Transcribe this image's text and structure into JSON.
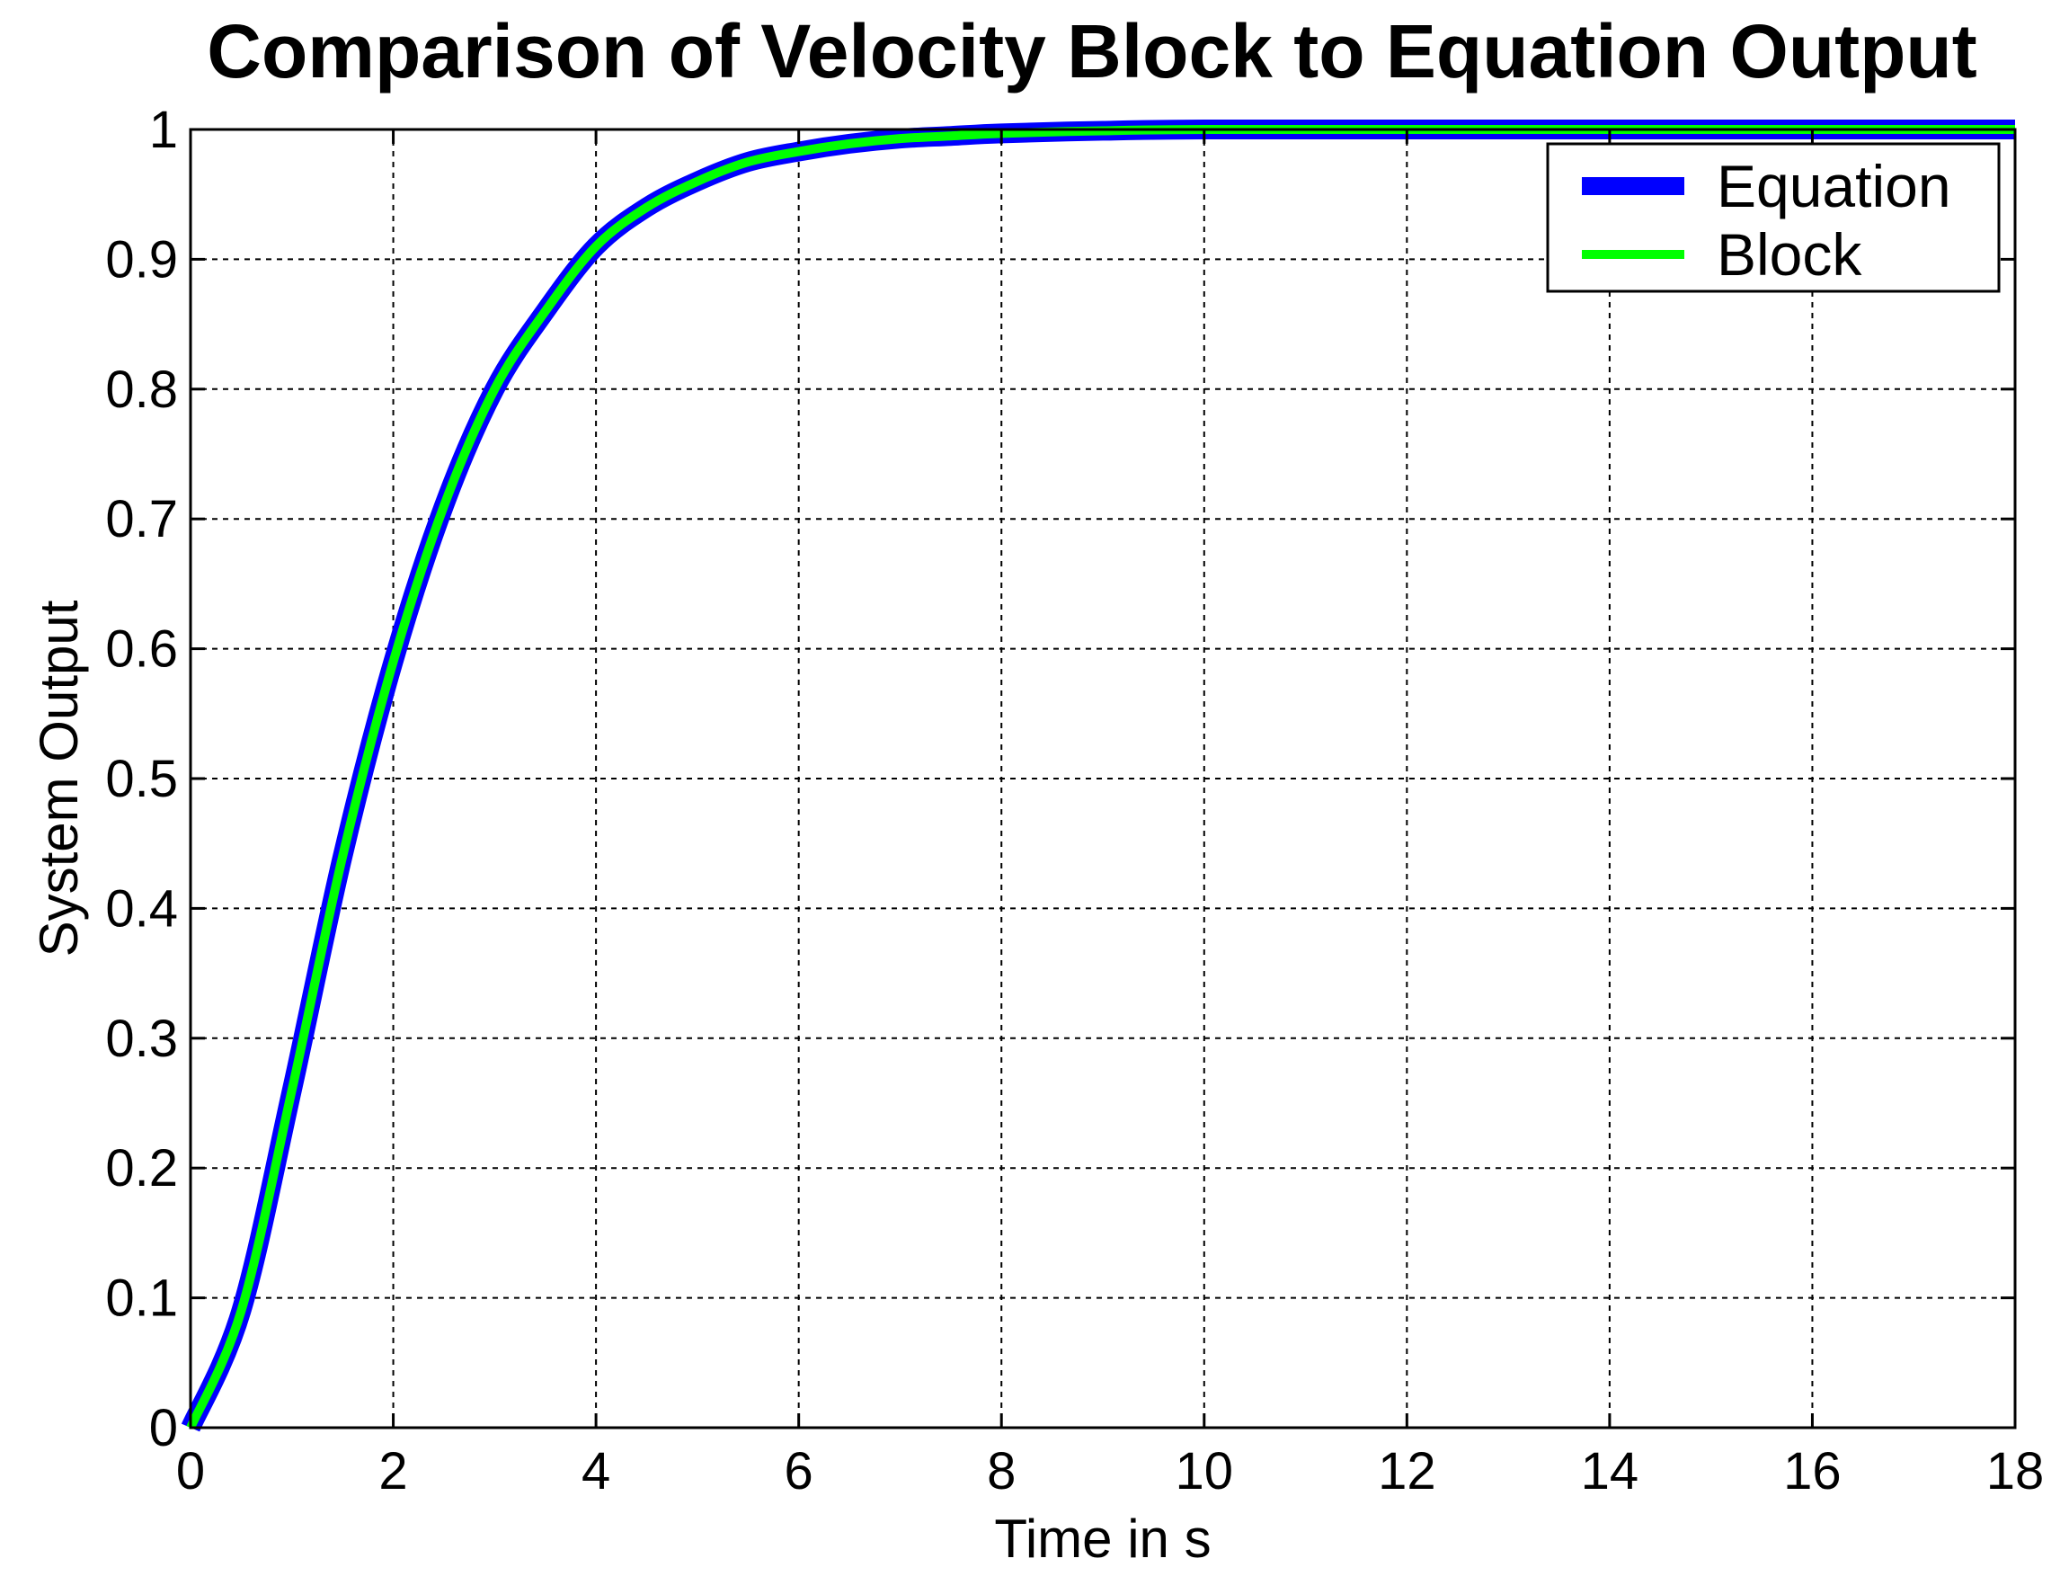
{
  "chart_data": {
    "type": "line",
    "title": "Comparison of Velocity Block to Equation Output",
    "xlabel": "Time in s",
    "ylabel": "System Output",
    "xlim": [
      0,
      18
    ],
    "ylim": [
      0,
      1
    ],
    "xticks": [
      0,
      2,
      4,
      6,
      8,
      10,
      12,
      14,
      16,
      18
    ],
    "yticks": [
      0,
      0.1,
      0.2,
      0.3,
      0.4,
      0.5,
      0.6,
      0.7,
      0.8,
      0.9,
      1
    ],
    "xtick_labels": [
      "0",
      "2",
      "4",
      "6",
      "8",
      "10",
      "12",
      "14",
      "16",
      "18"
    ],
    "ytick_labels": [
      "0",
      "0.1",
      "0.2",
      "0.3",
      "0.4",
      "0.5",
      "0.6",
      "0.7",
      "0.8",
      "0.9",
      "1"
    ],
    "grid": true,
    "legend_position": "top-right",
    "x": [
      0,
      0.5,
      1,
      1.5,
      2,
      2.5,
      3,
      3.5,
      4,
      4.5,
      5,
      5.5,
      6,
      6.5,
      7,
      7.5,
      8,
      9,
      10,
      12,
      14,
      16,
      18
    ],
    "series": [
      {
        "name": "Equation",
        "color": "#0000ff",
        "values": [
          0,
          0.09,
          0.26,
          0.44,
          0.59,
          0.71,
          0.8,
          0.86,
          0.91,
          0.94,
          0.96,
          0.975,
          0.983,
          0.989,
          0.993,
          0.995,
          0.997,
          0.999,
          1.0,
          1.0,
          1.0,
          1.0,
          1.0
        ]
      },
      {
        "name": "Block",
        "color": "#00ff00",
        "values": [
          0,
          0.09,
          0.26,
          0.44,
          0.59,
          0.71,
          0.8,
          0.86,
          0.91,
          0.94,
          0.96,
          0.975,
          0.983,
          0.989,
          0.993,
          0.995,
          0.997,
          0.999,
          1.0,
          1.0,
          1.0,
          1.0,
          1.0
        ]
      }
    ]
  }
}
